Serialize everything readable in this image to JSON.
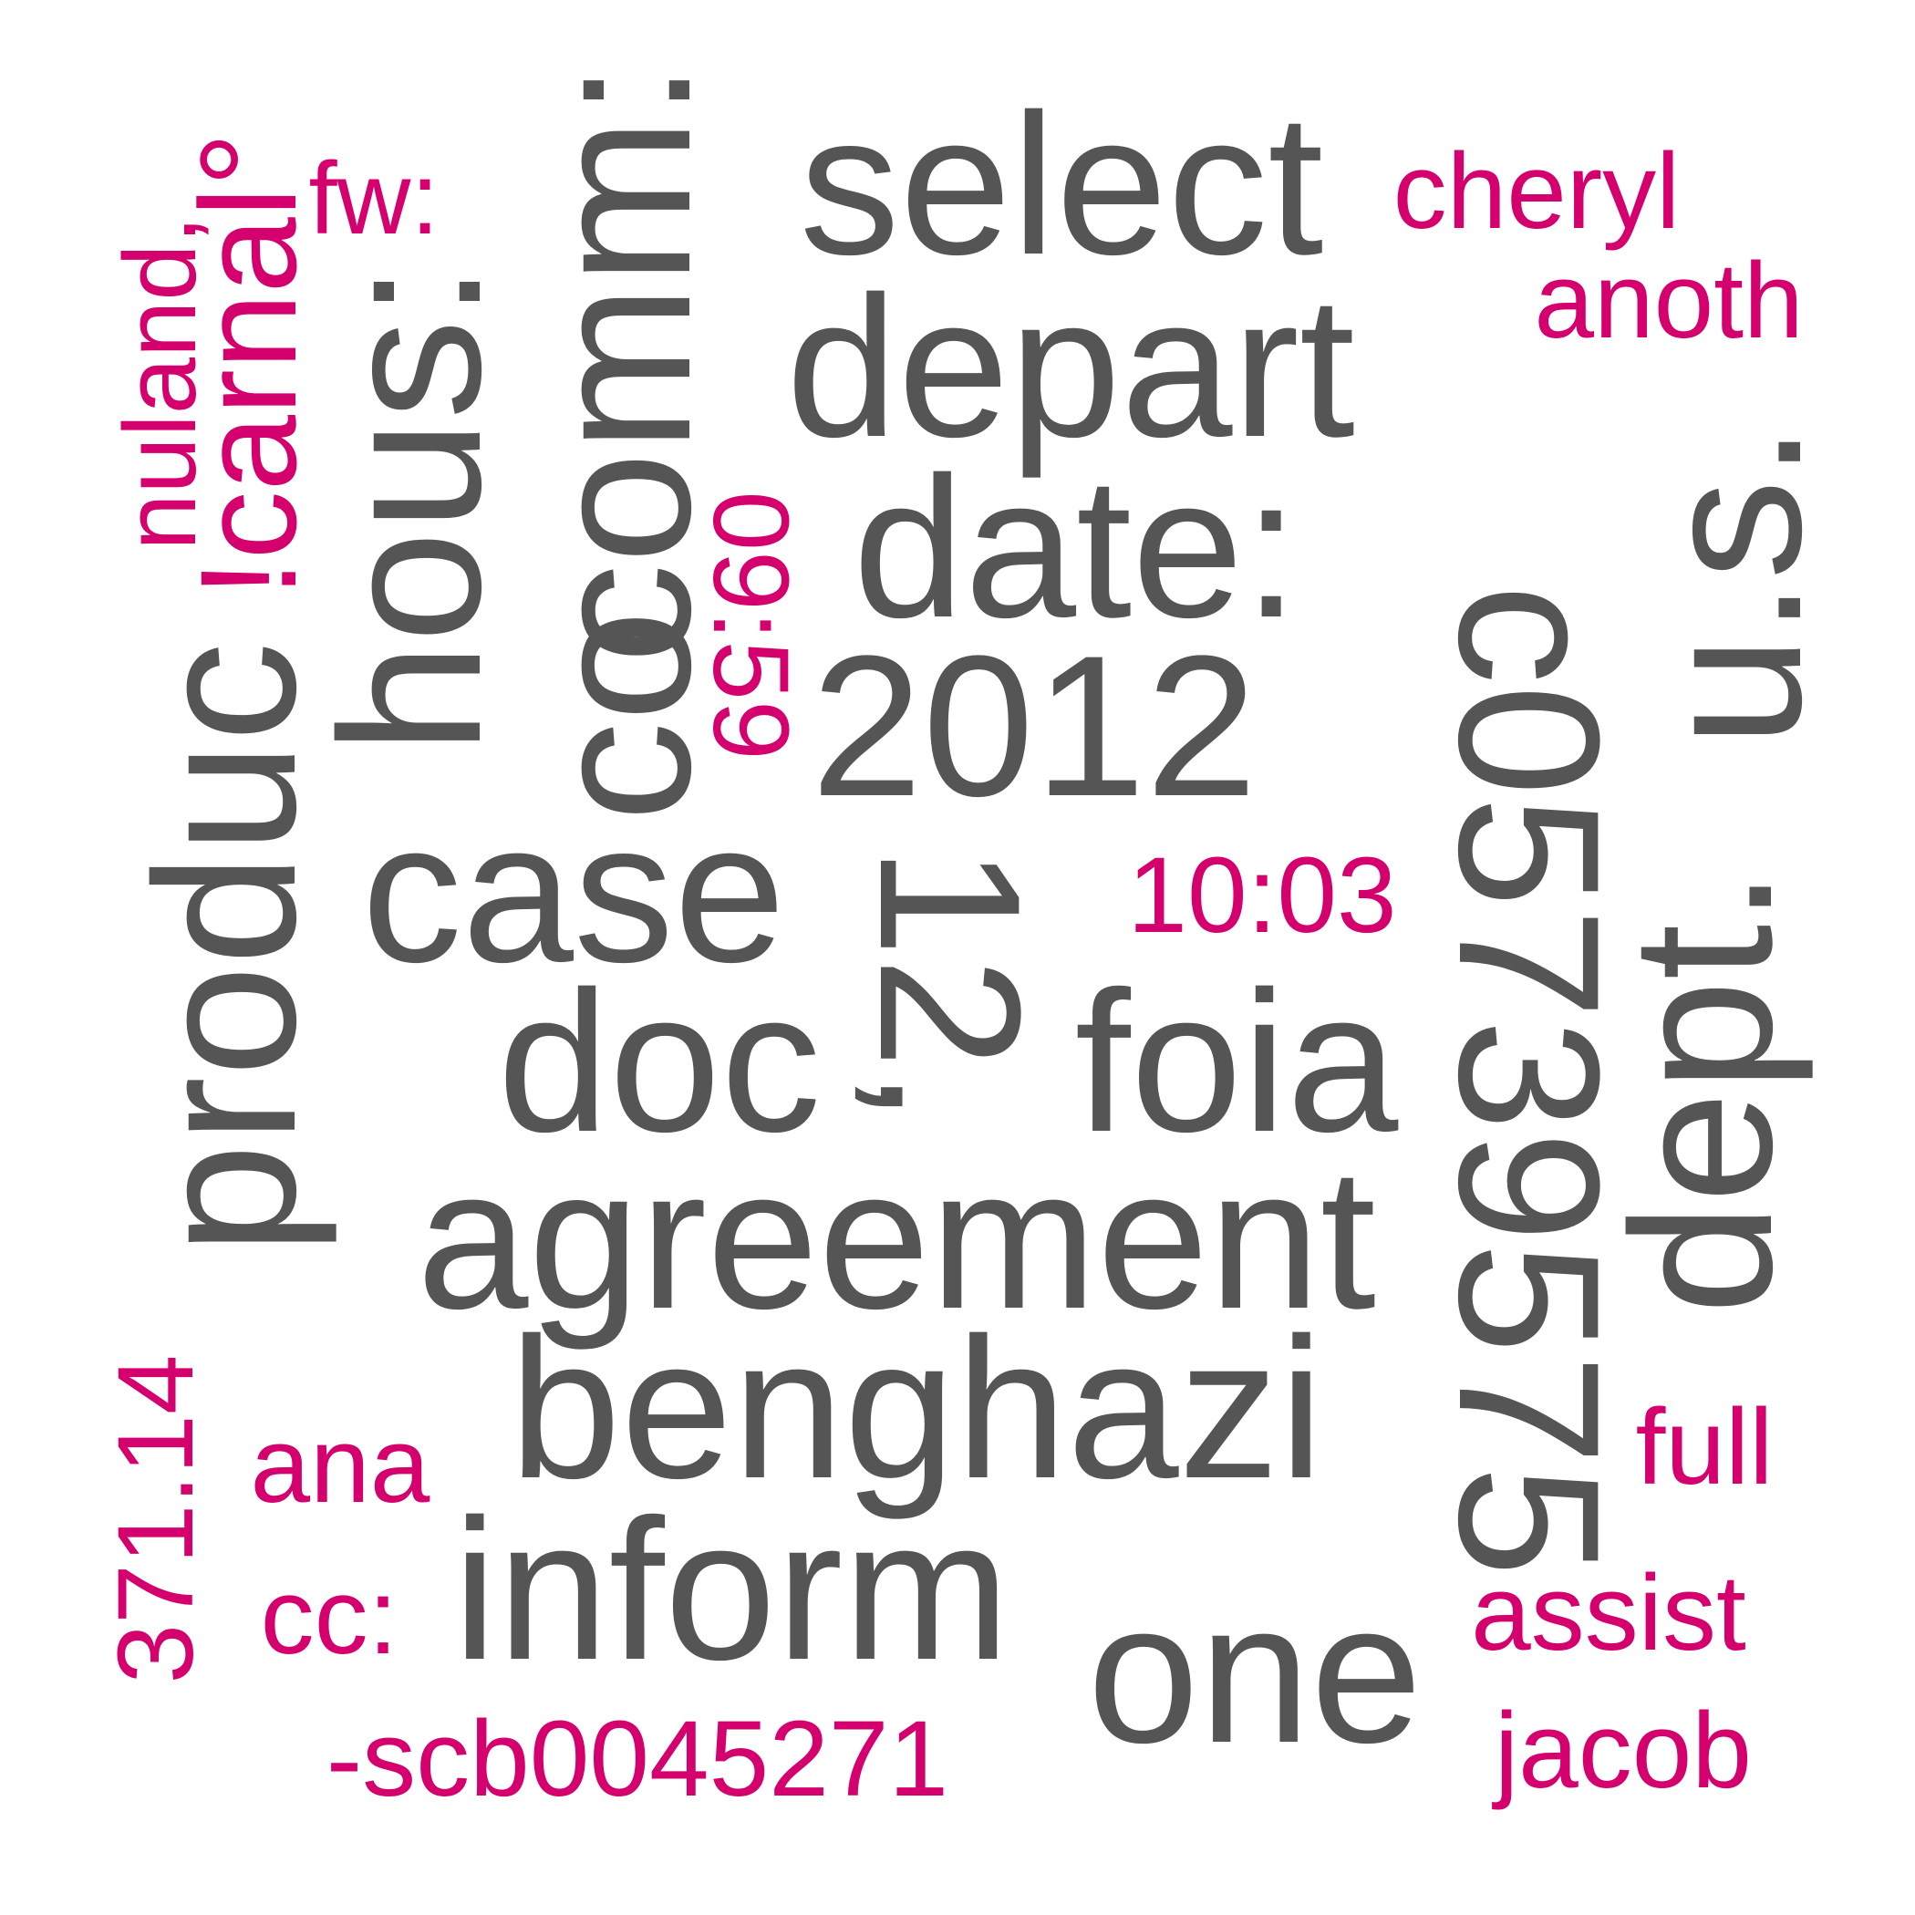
{
  "palette": {
    "primary": "#555555",
    "accent": "#d4006e",
    "background": "#ffffff"
  },
  "words": [
    {
      "id": "select",
      "text": "select",
      "color": "primary",
      "orientation": "horizontal"
    },
    {
      "id": "depart",
      "text": "depart",
      "color": "primary",
      "orientation": "horizontal"
    },
    {
      "id": "cheryl",
      "text": "cheryl",
      "color": "accent",
      "orientation": "horizontal"
    },
    {
      "id": "anoth",
      "text": "anoth",
      "color": "accent",
      "orientation": "horizontal"
    },
    {
      "id": "fw",
      "text": "fw:",
      "color": "accent",
      "orientation": "horizontal"
    },
    {
      "id": "nuland",
      "text": "nuland,",
      "color": "accent",
      "orientation": "vertical"
    },
    {
      "id": "carnal",
      "text": "!carnal°",
      "color": "accent",
      "orientation": "vertical"
    },
    {
      "id": "hous",
      "text": "hous:",
      "color": "primary",
      "orientation": "vertical"
    },
    {
      "id": "comm",
      "text": "comm:",
      "color": "primary",
      "orientation": "vertical"
    },
    {
      "id": "co",
      "text": "co",
      "color": "primary",
      "orientation": "vertical"
    },
    {
      "id": "t0959",
      "text": "09:59",
      "color": "accent",
      "orientation": "vertical"
    },
    {
      "id": "date",
      "text": "date:",
      "color": "primary",
      "orientation": "horizontal"
    },
    {
      "id": "y2012",
      "text": "2012",
      "color": "primary",
      "orientation": "horizontal"
    },
    {
      "id": "n12",
      "text": "12,",
      "color": "primary",
      "orientation": "vertical"
    },
    {
      "id": "t1003",
      "text": "10:03",
      "color": "accent",
      "orientation": "horizontal"
    },
    {
      "id": "produc",
      "text": "produc",
      "color": "primary",
      "orientation": "vertical"
    },
    {
      "id": "case",
      "text": "case",
      "color": "primary",
      "orientation": "horizontal"
    },
    {
      "id": "doc",
      "text": "doc",
      "color": "primary",
      "orientation": "horizontal"
    },
    {
      "id": "foia",
      "text": "foia",
      "color": "primary",
      "orientation": "horizontal"
    },
    {
      "id": "agreement",
      "text": "agreement",
      "color": "primary",
      "orientation": "horizontal"
    },
    {
      "id": "c05739575",
      "text": "c05739575",
      "color": "primary",
      "orientation": "vertical"
    },
    {
      "id": "us",
      "text": "u.s.",
      "color": "primary",
      "orientation": "vertical"
    },
    {
      "id": "dept",
      "text": "dept.",
      "color": "primary",
      "orientation": "vertical"
    },
    {
      "id": "benghazi",
      "text": "benghazi",
      "color": "primary",
      "orientation": "horizontal"
    },
    {
      "id": "full",
      "text": "full",
      "color": "accent",
      "orientation": "horizontal"
    },
    {
      "id": "n37114",
      "text": "371.14",
      "color": "accent",
      "orientation": "vertical"
    },
    {
      "id": "ana",
      "text": "ana",
      "color": "accent",
      "orientation": "horizontal"
    },
    {
      "id": "cc",
      "text": "cc:",
      "color": "accent",
      "orientation": "horizontal"
    },
    {
      "id": "inform",
      "text": "inform",
      "color": "primary",
      "orientation": "horizontal"
    },
    {
      "id": "one",
      "text": "one",
      "color": "primary",
      "orientation": "horizontal"
    },
    {
      "id": "assist",
      "text": "assist",
      "color": "accent",
      "orientation": "horizontal"
    },
    {
      "id": "jacob",
      "text": "jacob",
      "color": "accent",
      "orientation": "horizontal"
    },
    {
      "id": "scb",
      "text": "-scb0045271",
      "color": "accent",
      "orientation": "horizontal"
    }
  ]
}
